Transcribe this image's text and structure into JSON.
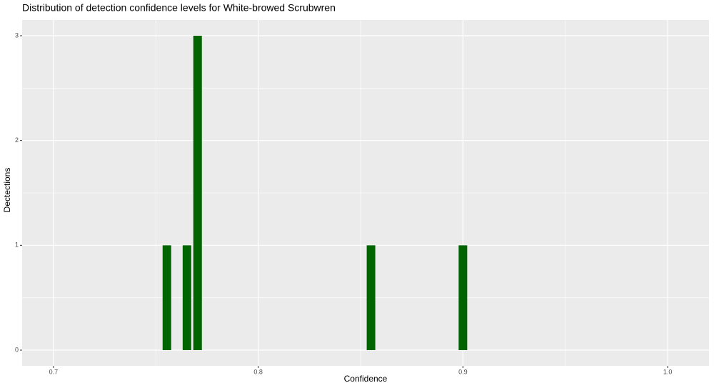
{
  "chart_data": {
    "type": "bar",
    "title": "Distribution of detection confidence levels for White-browed Scrubwren",
    "xlabel": "Confidence",
    "ylabel": "Dectections",
    "x": [
      0.7554,
      0.7652,
      0.7704,
      0.8551,
      0.9
    ],
    "values": [
      1,
      1,
      3,
      1,
      1
    ],
    "color": "#006400",
    "xlim": [
      0.6847,
      1.0202
    ],
    "xticks": [
      0.7,
      0.8,
      0.9,
      {
        "value": 1,
        "label": "1.0"
      }
    ],
    "minor_xticks": [
      0.75,
      0.85,
      0.95
    ],
    "ylim": [
      -0.15,
      3.15
    ],
    "yticks": [
      0,
      1,
      2,
      3
    ],
    "minor_yticks": [
      0.5,
      1.5,
      2.5
    ],
    "grid": true
  }
}
